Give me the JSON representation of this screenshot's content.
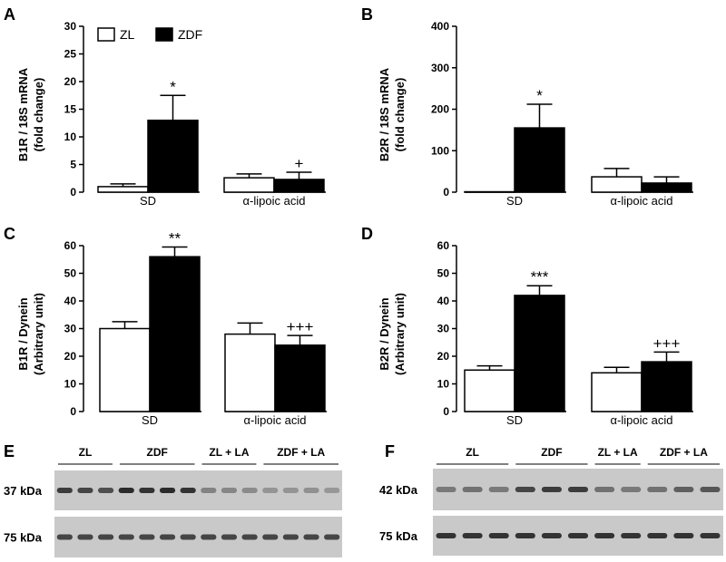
{
  "panels": {
    "A": {
      "letter": "A"
    },
    "B": {
      "letter": "B"
    },
    "C": {
      "letter": "C"
    },
    "D": {
      "letter": "D"
    },
    "E": {
      "letter": "E"
    },
    "F": {
      "letter": "F"
    }
  },
  "legend": {
    "zl": "ZL",
    "zdf": "ZDF"
  },
  "colors": {
    "zl": "#ffffff",
    "zdf": "#000000",
    "stroke": "#000000"
  },
  "chart_data": [
    {
      "id": "A",
      "type": "bar",
      "categories": [
        "SD",
        "α-lipoic acid"
      ],
      "series": [
        {
          "name": "ZL",
          "values": [
            1.0,
            2.6
          ],
          "errors": [
            0.5,
            0.7
          ]
        },
        {
          "name": "ZDF",
          "values": [
            13.0,
            2.3
          ],
          "errors": [
            4.5,
            1.3
          ]
        }
      ],
      "significance": [
        [
          "",
          ""
        ],
        [
          "*",
          "+"
        ]
      ],
      "ylabel_line1": "B1R / 18S mRNA",
      "ylabel_line2": "(fold change)",
      "ylim": [
        0,
        30
      ],
      "yticks": [
        0,
        5,
        10,
        15,
        20,
        25,
        30
      ]
    },
    {
      "id": "B",
      "type": "bar",
      "categories": [
        "SD",
        "α-lipoic acid"
      ],
      "series": [
        {
          "name": "ZL",
          "values": [
            1,
            37
          ],
          "errors": [
            0,
            20
          ]
        },
        {
          "name": "ZDF",
          "values": [
            155,
            22
          ],
          "errors": [
            57,
            15
          ]
        }
      ],
      "significance": [
        [
          "",
          ""
        ],
        [
          "*",
          ""
        ]
      ],
      "ylabel_line1": "B2R / 18S mRNA",
      "ylabel_line2": "(fold change)",
      "ylim": [
        0,
        400
      ],
      "yticks": [
        0,
        100,
        200,
        300,
        400
      ]
    },
    {
      "id": "C",
      "type": "bar",
      "categories": [
        "SD",
        "α-lipoic acid"
      ],
      "series": [
        {
          "name": "ZL",
          "values": [
            30,
            28
          ],
          "errors": [
            2.5,
            4
          ]
        },
        {
          "name": "ZDF",
          "values": [
            56,
            24
          ],
          "errors": [
            3.5,
            3.5
          ]
        }
      ],
      "significance": [
        [
          "",
          ""
        ],
        [
          "**",
          "+++"
        ]
      ],
      "ylabel_line1": "B1R / Dynein",
      "ylabel_line2": "(Arbitrary unit)",
      "ylim": [
        0,
        60
      ],
      "yticks": [
        0,
        10,
        20,
        30,
        40,
        50,
        60
      ]
    },
    {
      "id": "D",
      "type": "bar",
      "categories": [
        "SD",
        "α-lipoic acid"
      ],
      "series": [
        {
          "name": "ZL",
          "values": [
            15,
            14
          ],
          "errors": [
            1.5,
            2
          ]
        },
        {
          "name": "ZDF",
          "values": [
            42,
            18
          ],
          "errors": [
            3.5,
            3.5
          ]
        }
      ],
      "significance": [
        [
          "",
          ""
        ],
        [
          "***",
          "+++"
        ]
      ],
      "ylabel_line1": "B2R / Dynein",
      "ylabel_line2": "(Arbitrary unit)",
      "ylim": [
        0,
        60
      ],
      "yticks": [
        0,
        10,
        20,
        30,
        40,
        50,
        60
      ]
    }
  ],
  "blots": [
    {
      "id": "E",
      "groups": [
        "ZL",
        "ZDF",
        "ZL + LA",
        "ZDF + LA"
      ],
      "lanes_per_group": [
        3,
        4,
        3,
        4
      ],
      "bands": [
        {
          "label": "37 kDa",
          "intensity": [
            0.8,
            0.75,
            0.7,
            0.9,
            0.85,
            0.9,
            0.85,
            0.4,
            0.38,
            0.35,
            0.3,
            0.3,
            0.32,
            0.28
          ]
        },
        {
          "label": "75 kDa",
          "intensity": [
            0.75,
            0.75,
            0.75,
            0.75,
            0.75,
            0.75,
            0.75,
            0.75,
            0.75,
            0.75,
            0.75,
            0.75,
            0.75,
            0.75
          ]
        }
      ]
    },
    {
      "id": "F",
      "groups": [
        "ZL",
        "ZDF",
        "ZL + LA",
        "ZDF + LA"
      ],
      "lanes_per_group": [
        3,
        3,
        2,
        3
      ],
      "bands": [
        {
          "label": "42 kDa",
          "intensity": [
            0.45,
            0.5,
            0.45,
            0.75,
            0.8,
            0.8,
            0.5,
            0.45,
            0.5,
            0.6,
            0.65
          ]
        },
        {
          "label": "75 kDa",
          "intensity": [
            0.85,
            0.85,
            0.85,
            0.85,
            0.85,
            0.85,
            0.85,
            0.85,
            0.85,
            0.85,
            0.85
          ]
        }
      ]
    }
  ]
}
